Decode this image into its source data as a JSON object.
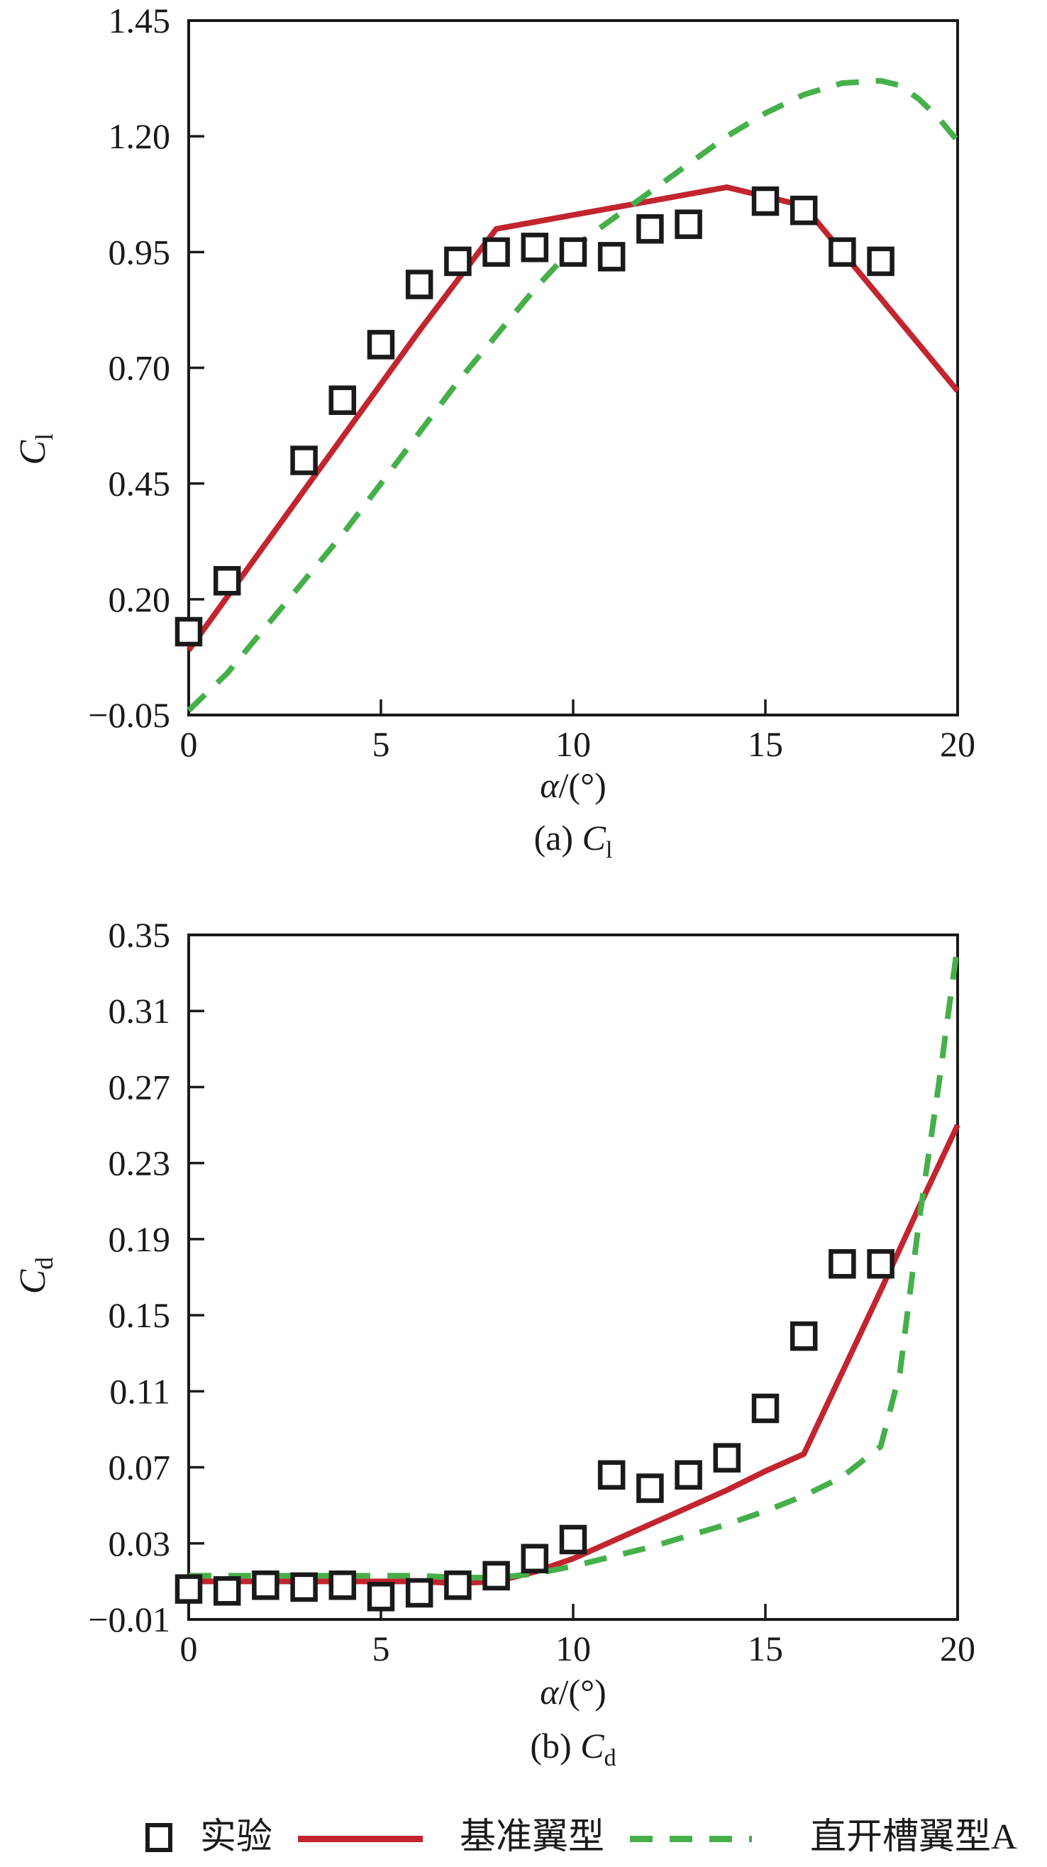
{
  "figure": {
    "colors": {
      "experiment": "#1a1a1a",
      "baseline": "#c2252e",
      "slotted": "#45b04a",
      "axis": "#1a1a1a"
    },
    "legend": {
      "position": "bottom",
      "items": [
        {
          "marker": "square-marker",
          "label": "实验"
        },
        {
          "marker": "solid-line",
          "label": "基准翼型",
          "color": "#c2252e"
        },
        {
          "marker": "dashed-line",
          "label": "直开槽翼型A",
          "color": "#45b04a"
        }
      ]
    }
  },
  "chart_data": [
    {
      "id": "cl",
      "type": "scatter",
      "title": "(a) Cl",
      "caption": {
        "prefix": "(a) ",
        "symbol": "C",
        "sub": "l"
      },
      "xlabel": {
        "italic": "α",
        "rest": "/(°)"
      },
      "ylabel": {
        "symbol": "C",
        "sub": "l"
      },
      "xlim": [
        0,
        20
      ],
      "ylim": [
        -0.05,
        1.45
      ],
      "xticks": [
        0,
        5,
        10,
        15,
        20
      ],
      "yticks": [
        -0.05,
        0.2,
        0.45,
        0.7,
        0.95,
        1.2,
        1.45
      ],
      "tick_decimals": 2,
      "grid": false,
      "series": [
        {
          "name": "实验",
          "type": "squares",
          "points": [
            [
              0,
              0.13
            ],
            [
              1,
              0.24
            ],
            [
              3,
              0.5
            ],
            [
              4,
              0.63
            ],
            [
              5,
              0.75
            ],
            [
              6,
              0.88
            ],
            [
              7,
              0.93
            ],
            [
              8,
              0.95
            ],
            [
              9,
              0.96
            ],
            [
              10,
              0.95
            ],
            [
              11,
              0.94
            ],
            [
              12,
              1.0
            ],
            [
              13,
              1.01
            ],
            [
              15,
              1.06
            ],
            [
              16,
              1.04
            ],
            [
              17,
              0.95
            ],
            [
              18,
              0.93
            ]
          ]
        },
        {
          "name": "基准翼型",
          "type": "solid",
          "points": [
            [
              0,
              0.09
            ],
            [
              2,
              0.32
            ],
            [
              4,
              0.55
            ],
            [
              6,
              0.78
            ],
            [
              8,
              1.0
            ],
            [
              10,
              1.03
            ],
            [
              12,
              1.06
            ],
            [
              14,
              1.09
            ],
            [
              15,
              1.07
            ],
            [
              16,
              1.05
            ],
            [
              17,
              0.95
            ],
            [
              18,
              0.85
            ],
            [
              19,
              0.75
            ],
            [
              20,
              0.65
            ]
          ]
        },
        {
          "name": "直开槽翼型A",
          "type": "dashed",
          "points": [
            [
              0,
              -0.04
            ],
            [
              1,
              0.04
            ],
            [
              2,
              0.14
            ],
            [
              3,
              0.24
            ],
            [
              4,
              0.34
            ],
            [
              5,
              0.45
            ],
            [
              6,
              0.56
            ],
            [
              7,
              0.67
            ],
            [
              8,
              0.77
            ],
            [
              9,
              0.87
            ],
            [
              10,
              0.96
            ],
            [
              11,
              1.02
            ],
            [
              12,
              1.08
            ],
            [
              13,
              1.14
            ],
            [
              14,
              1.2
            ],
            [
              15,
              1.25
            ],
            [
              16,
              1.29
            ],
            [
              17,
              1.315
            ],
            [
              18,
              1.32
            ],
            [
              18.5,
              1.31
            ],
            [
              19,
              1.28
            ],
            [
              19.5,
              1.24
            ],
            [
              20,
              1.19
            ]
          ]
        }
      ]
    },
    {
      "id": "cd",
      "type": "scatter",
      "title": "(b) Cd",
      "caption": {
        "prefix": "(b) ",
        "symbol": "C",
        "sub": "d"
      },
      "xlabel": {
        "italic": "α",
        "rest": "/(°)"
      },
      "ylabel": {
        "symbol": "C",
        "sub": "d"
      },
      "xlim": [
        0,
        20
      ],
      "ylim": [
        -0.01,
        0.35
      ],
      "xticks": [
        0,
        5,
        10,
        15,
        20
      ],
      "yticks": [
        -0.01,
        0.03,
        0.07,
        0.11,
        0.15,
        0.19,
        0.23,
        0.27,
        0.31,
        0.35
      ],
      "tick_decimals": 2,
      "grid": false,
      "series": [
        {
          "name": "实验",
          "type": "squares",
          "points": [
            [
              0,
              0.006
            ],
            [
              1,
              0.005
            ],
            [
              2,
              0.008
            ],
            [
              3,
              0.007
            ],
            [
              4,
              0.008
            ],
            [
              5,
              0.002
            ],
            [
              6,
              0.004
            ],
            [
              7,
              0.008
            ],
            [
              8,
              0.013
            ],
            [
              9,
              0.022
            ],
            [
              10,
              0.032
            ],
            [
              11,
              0.066
            ],
            [
              12,
              0.059
            ],
            [
              13,
              0.066
            ],
            [
              14,
              0.075
            ],
            [
              15,
              0.101
            ],
            [
              16,
              0.139
            ],
            [
              17,
              0.177
            ],
            [
              18,
              0.177
            ]
          ]
        },
        {
          "name": "基准翼型",
          "type": "solid",
          "points": [
            [
              0,
              0.01
            ],
            [
              2,
              0.01
            ],
            [
              4,
              0.01
            ],
            [
              6,
              0.01
            ],
            [
              7,
              0.009
            ],
            [
              8,
              0.01
            ],
            [
              9,
              0.015
            ],
            [
              10,
              0.022
            ],
            [
              11,
              0.031
            ],
            [
              12,
              0.04
            ],
            [
              13,
              0.049
            ],
            [
              14,
              0.058
            ],
            [
              15,
              0.068
            ],
            [
              16,
              0.077
            ],
            [
              17,
              0.12
            ],
            [
              18,
              0.163
            ],
            [
              19,
              0.207
            ],
            [
              20,
              0.25
            ]
          ]
        },
        {
          "name": "直开槽翼型A",
          "type": "dashed",
          "points": [
            [
              0,
              0.013
            ],
            [
              2,
              0.013
            ],
            [
              4,
              0.013
            ],
            [
              6,
              0.013
            ],
            [
              7,
              0.012
            ],
            [
              8,
              0.012
            ],
            [
              9,
              0.014
            ],
            [
              10,
              0.018
            ],
            [
              11,
              0.023
            ],
            [
              12,
              0.028
            ],
            [
              13,
              0.034
            ],
            [
              14,
              0.04
            ],
            [
              15,
              0.047
            ],
            [
              16,
              0.055
            ],
            [
              17,
              0.065
            ],
            [
              18,
              0.081
            ],
            [
              18.5,
              0.12
            ],
            [
              19,
              0.2
            ],
            [
              19.5,
              0.27
            ],
            [
              20,
              0.345
            ]
          ]
        }
      ]
    }
  ]
}
